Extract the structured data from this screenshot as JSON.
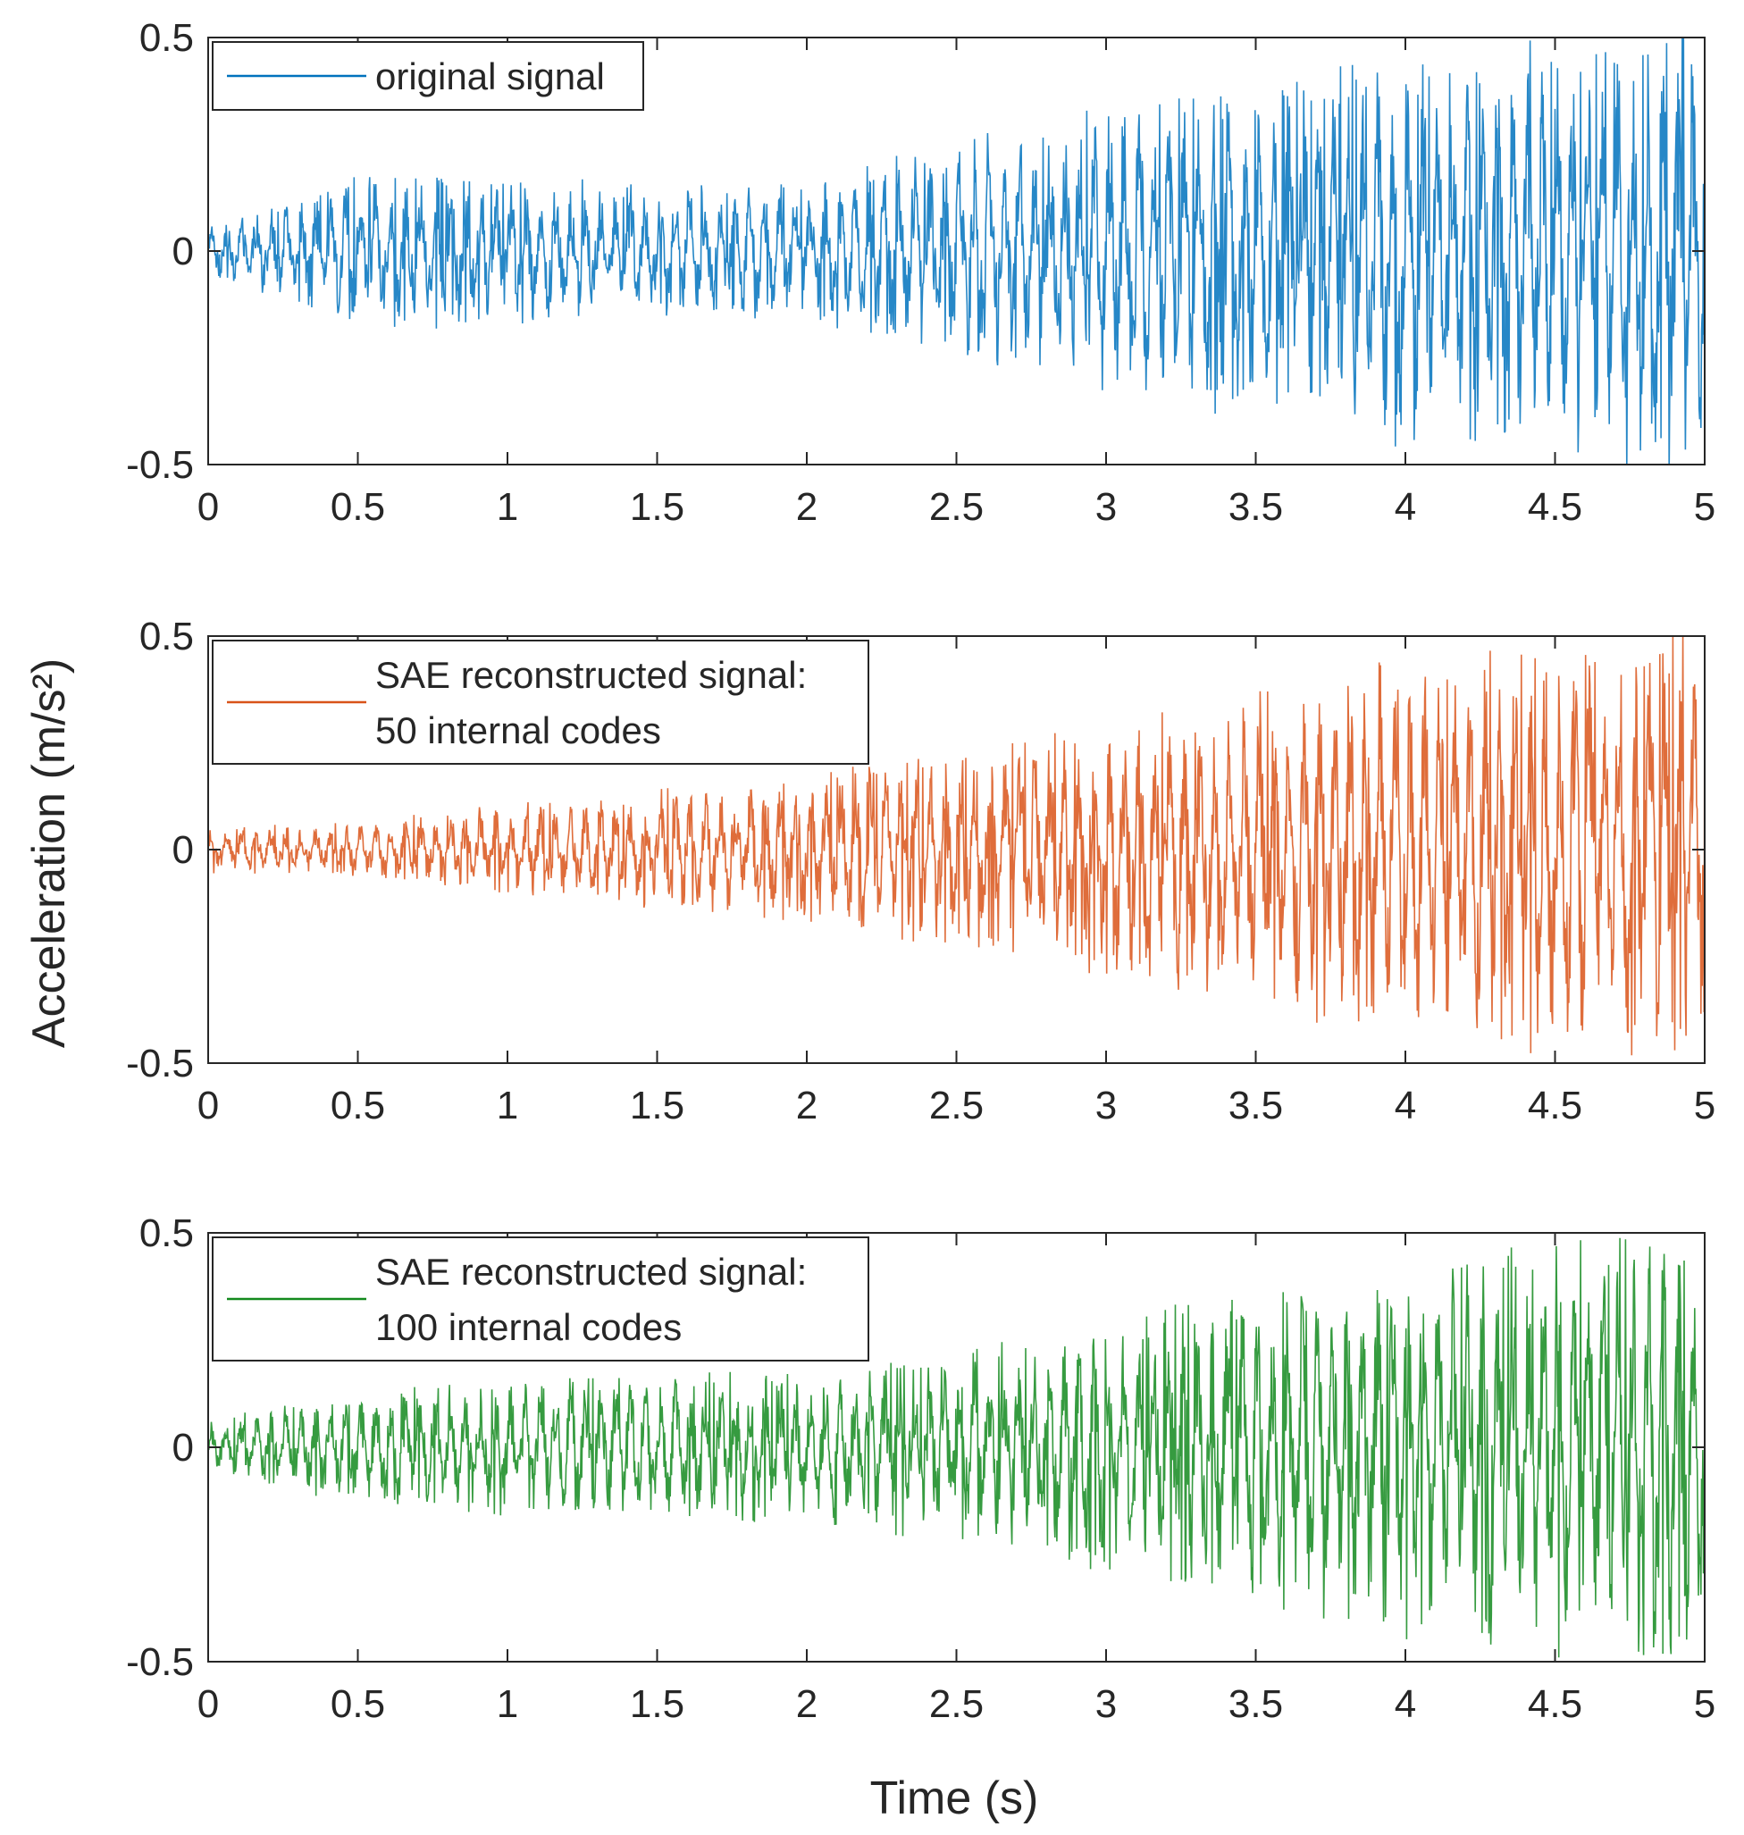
{
  "figure": {
    "ylabel": "Acceleration (m/s²)",
    "xlabel": "Time (s)"
  },
  "chart_data": [
    {
      "type": "line",
      "title": "",
      "xlim": [
        0,
        5
      ],
      "ylim": [
        -0.5,
        0.5
      ],
      "xticks": [
        0,
        0.5,
        1,
        1.5,
        2,
        2.5,
        3,
        3.5,
        4,
        4.5,
        5
      ],
      "xtick_labels": [
        "0",
        "0.5",
        "1",
        "1.5",
        "2",
        "2.5",
        "3",
        "3.5",
        "4",
        "4.5",
        "5"
      ],
      "yticks": [
        -0.5,
        0,
        0.5
      ],
      "ytick_labels": [
        "-0.5",
        "0",
        "0.5"
      ],
      "legend": [
        "original signal"
      ],
      "legend_position": "top-left",
      "color": "#0072BD",
      "envelope": {
        "x": [
          0,
          0.5,
          1,
          1.5,
          2,
          2.5,
          3,
          3.5,
          4,
          4.5,
          5
        ],
        "amplitude": [
          0.06,
          0.16,
          0.17,
          0.14,
          0.15,
          0.24,
          0.33,
          0.36,
          0.42,
          0.46,
          0.48
        ]
      }
    },
    {
      "type": "line",
      "title": "",
      "xlim": [
        0,
        5
      ],
      "ylim": [
        -0.5,
        0.5
      ],
      "xticks": [
        0,
        0.5,
        1,
        1.5,
        2,
        2.5,
        3,
        3.5,
        4,
        4.5,
        5
      ],
      "xtick_labels": [
        "0",
        "0.5",
        "1",
        "1.5",
        "2",
        "2.5",
        "3",
        "3.5",
        "4",
        "4.5",
        "5"
      ],
      "yticks": [
        -0.5,
        0,
        0.5
      ],
      "ytick_labels": [
        "-0.5",
        "0",
        "0.5"
      ],
      "legend": [
        "SAE reconstructed signal:",
        "50 internal codes"
      ],
      "legend_position": "top-left",
      "color": "#D95319",
      "envelope": {
        "x": [
          0,
          0.5,
          1,
          1.5,
          2,
          2.5,
          3,
          3.5,
          4,
          4.5,
          5
        ],
        "amplitude": [
          0.05,
          0.06,
          0.1,
          0.13,
          0.16,
          0.22,
          0.28,
          0.34,
          0.42,
          0.46,
          0.48
        ]
      }
    },
    {
      "type": "line",
      "title": "",
      "xlim": [
        0,
        5
      ],
      "ylim": [
        -0.5,
        0.5
      ],
      "xticks": [
        0,
        0.5,
        1,
        1.5,
        2,
        2.5,
        3,
        3.5,
        4,
        4.5,
        5
      ],
      "xtick_labels": [
        "0",
        "0.5",
        "1",
        "1.5",
        "2",
        "2.5",
        "3",
        "3.5",
        "4",
        "4.5",
        "5"
      ],
      "yticks": [
        -0.5,
        0,
        0.5
      ],
      "ytick_labels": [
        "-0.5",
        "0",
        "0.5"
      ],
      "legend": [
        "SAE reconstructed signal:",
        "100 internal codes"
      ],
      "legend_position": "top-left",
      "color": "#138A1E",
      "envelope": {
        "x": [
          0,
          0.5,
          1,
          1.5,
          2,
          2.5,
          3,
          3.5,
          4,
          4.5,
          5
        ],
        "amplitude": [
          0.06,
          0.12,
          0.15,
          0.16,
          0.16,
          0.21,
          0.27,
          0.34,
          0.41,
          0.46,
          0.48
        ]
      }
    }
  ]
}
